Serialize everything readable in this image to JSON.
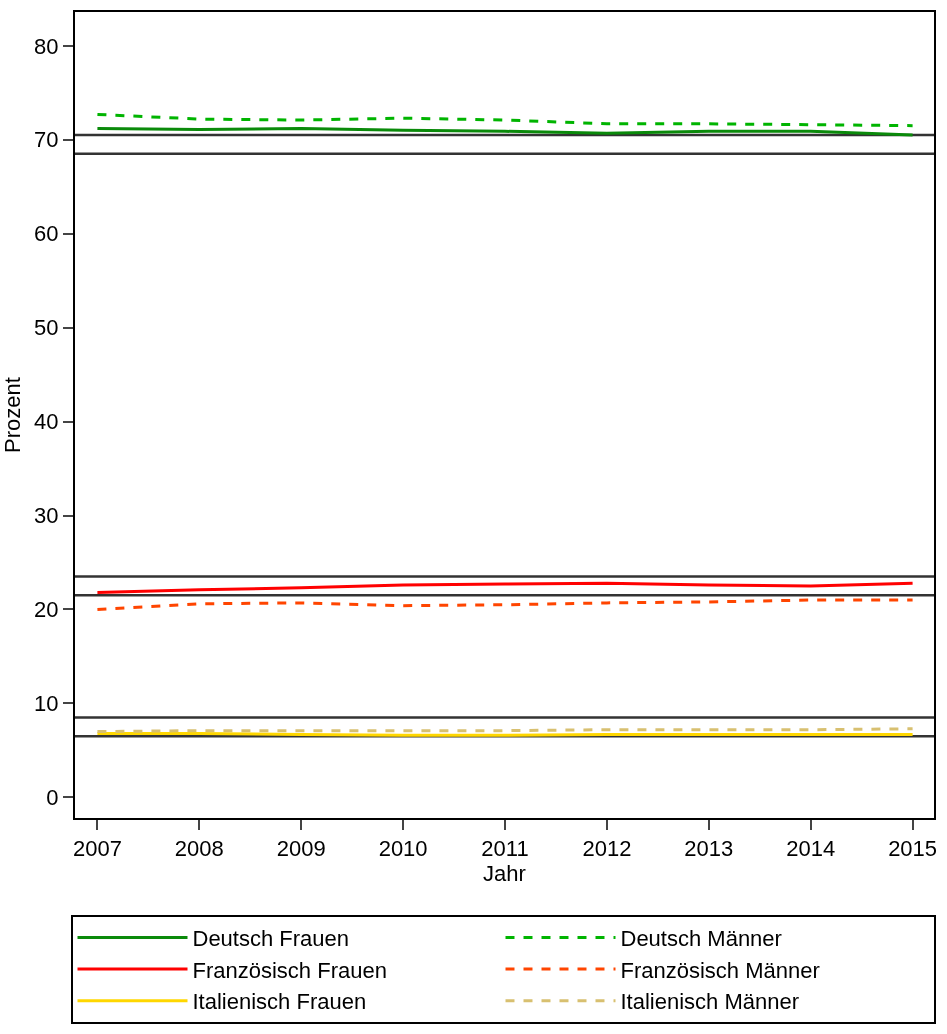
{
  "chart_data": {
    "type": "line",
    "xlabel": "Jahr",
    "ylabel": "Prozent",
    "x": [
      2007,
      2008,
      2009,
      2010,
      2011,
      2012,
      2013,
      2014,
      2015
    ],
    "xlim": [
      2006.78,
      2015.21
    ],
    "xticks": [
      2007,
      2008,
      2009,
      2010,
      2011,
      2012,
      2013,
      2014,
      2015
    ],
    "ylim": [
      -2.2,
      83.6
    ],
    "yticks": [
      0,
      10,
      20,
      30,
      40,
      50,
      60,
      70,
      80
    ],
    "grid": false,
    "legend": "bottom",
    "marker": "none",
    "series": [
      {
        "name": "Deutsch Frauen",
        "color": "#0a8a0a",
        "line_style": "solid",
        "values": [
          71.2,
          71.1,
          71.2,
          71.0,
          70.9,
          70.7,
          70.9,
          70.9,
          70.5
        ]
      },
      {
        "name": "Deutsch Männer",
        "color": "#00b400",
        "line_style": "dashed",
        "values": [
          72.7,
          72.2,
          72.1,
          72.3,
          72.1,
          71.7,
          71.7,
          71.6,
          71.5
        ]
      },
      {
        "name": "Französisch Frauen",
        "color": "#ff0000",
        "line_style": "solid",
        "values": [
          21.8,
          22.1,
          22.3,
          22.6,
          22.7,
          22.8,
          22.6,
          22.5,
          22.8
        ]
      },
      {
        "name": "Französisch Männer",
        "color": "#ff4500",
        "line_style": "dashed",
        "values": [
          20.0,
          20.6,
          20.7,
          20.4,
          20.5,
          20.7,
          20.8,
          21.0,
          21.0
        ]
      },
      {
        "name": "Italienisch Frauen",
        "color": "#ffd700",
        "line_style": "solid",
        "values": [
          6.8,
          6.8,
          6.7,
          6.6,
          6.6,
          6.7,
          6.7,
          6.7,
          6.7
        ]
      },
      {
        "name": "Italienisch Männer",
        "color": "#d8c070",
        "line_style": "dashed",
        "values": [
          7.0,
          7.1,
          7.1,
          7.1,
          7.1,
          7.2,
          7.2,
          7.2,
          7.3
        ]
      }
    ],
    "ref_lines": [
      {
        "axis": "y",
        "value": 70.5,
        "color": "#333333"
      },
      {
        "axis": "y",
        "value": 68.5,
        "color": "#333333"
      },
      {
        "axis": "y",
        "value": 23.5,
        "color": "#333333"
      },
      {
        "axis": "y",
        "value": 21.5,
        "color": "#333333"
      },
      {
        "axis": "y",
        "value": 8.5,
        "color": "#333333"
      },
      {
        "axis": "y",
        "value": 6.5,
        "color": "#333333"
      }
    ]
  }
}
